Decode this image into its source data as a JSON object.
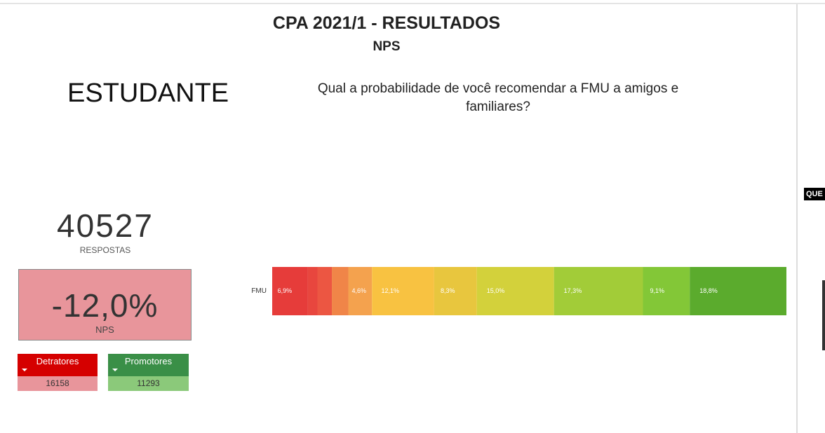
{
  "header": {
    "title": "CPA 2021/1 - RESULTADOS",
    "subtitle": "NPS"
  },
  "audience": "ESTUDANTE",
  "question": [
    "Qual a probabilidade de você recomendar a FMU a amigos e",
    "familiares?"
  ],
  "responses": {
    "value": 40527,
    "label": "RESPOSTAS"
  },
  "nps": {
    "value": "-12,0%",
    "label": "NPS"
  },
  "detractors": {
    "label": "Detratores",
    "value": 16158
  },
  "promoters": {
    "label": "Promotores",
    "value": 11293
  },
  "side_panel": {
    "label": "QUE"
  },
  "chart_data": {
    "type": "stacked-bar-horizontal",
    "categories": [
      "FMU"
    ],
    "series": [
      {
        "color": "#e63c3a",
        "values": [
          6.9
        ],
        "value_labels": [
          "6,9%"
        ]
      },
      {
        "color": "#e8463e",
        "values": [
          1.9
        ],
        "value_labels": [
          null
        ]
      },
      {
        "color": "#ec5642",
        "values": [
          2.8
        ],
        "value_labels": [
          null
        ]
      },
      {
        "color": "#f08548",
        "values": [
          3.2
        ],
        "value_labels": [
          null
        ]
      },
      {
        "color": "#f4a24e",
        "values": [
          4.6
        ],
        "value_labels": [
          "4,6%"
        ]
      },
      {
        "color": "#f8c241",
        "values": [
          12.1
        ],
        "value_labels": [
          "12,1%"
        ]
      },
      {
        "color": "#e8c63e",
        "values": [
          8.3
        ],
        "value_labels": [
          "8,3%"
        ]
      },
      {
        "color": "#d3d13b",
        "values": [
          15.0
        ],
        "value_labels": [
          "15,0%"
        ]
      },
      {
        "color": "#a2cc38",
        "values": [
          17.3
        ],
        "value_labels": [
          "17,3%"
        ]
      },
      {
        "color": "#83c737",
        "values": [
          9.1
        ],
        "value_labels": [
          "9,1%"
        ]
      },
      {
        "color": "#5bab2d",
        "values": [
          18.8
        ],
        "value_labels": [
          "18,8%"
        ]
      }
    ]
  }
}
